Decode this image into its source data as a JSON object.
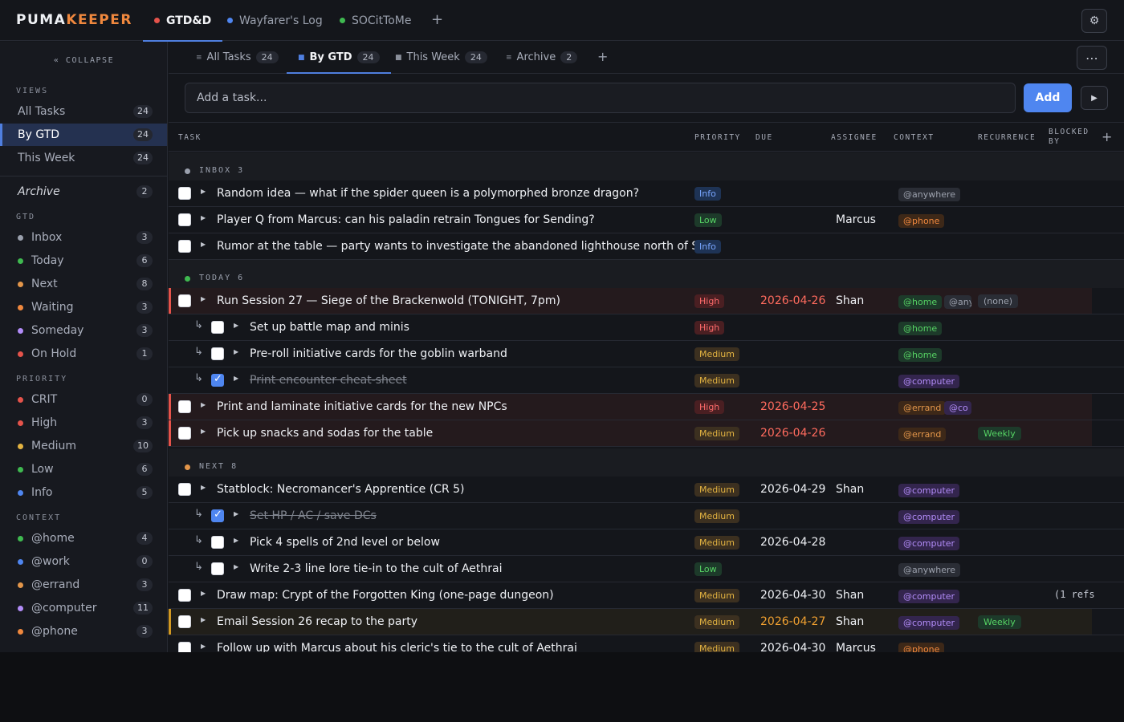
{
  "app": {
    "logo_a": "PUMA",
    "logo_b": "KEEPER"
  },
  "project_tabs": [
    {
      "label": "GTD&D",
      "color": "#e5534b",
      "active": true
    },
    {
      "label": "Wayfarer's Log",
      "color": "#4f86f0"
    },
    {
      "label": "SOCitToMe",
      "color": "#3fb950"
    }
  ],
  "icons": {
    "add_project": "+",
    "settings": "⚙",
    "more": "⋯",
    "add_view": "+",
    "add_column": "+",
    "play": "▶"
  },
  "sidebar": {
    "collapse_label": "« COLLAPSE",
    "views_heading": "VIEWS",
    "views": [
      {
        "label": "All Tasks",
        "count": "24"
      },
      {
        "label": "By GTD",
        "count": "24",
        "active": true
      },
      {
        "label": "This Week",
        "count": "24"
      }
    ],
    "archive": {
      "label": "Archive",
      "count": "2"
    },
    "gtd_heading": "GTD",
    "gtd": [
      {
        "label": "Inbox",
        "count": "3",
        "color": "#9aa0ad"
      },
      {
        "label": "Today",
        "count": "6",
        "color": "#3fb950"
      },
      {
        "label": "Next",
        "count": "8",
        "color": "#e3964a"
      },
      {
        "label": "Waiting",
        "count": "3",
        "color": "#f0883e"
      },
      {
        "label": "Someday",
        "count": "3",
        "color": "#b28cf8"
      },
      {
        "label": "On Hold",
        "count": "1",
        "color": "#e5534b"
      }
    ],
    "priority_heading": "PRIORITY",
    "priority": [
      {
        "label": "CRIT",
        "count": "0",
        "color": "#e5534b"
      },
      {
        "label": "High",
        "count": "3",
        "color": "#e5534b"
      },
      {
        "label": "Medium",
        "count": "10",
        "color": "#e3b341"
      },
      {
        "label": "Low",
        "count": "6",
        "color": "#3fb950"
      },
      {
        "label": "Info",
        "count": "5",
        "color": "#4f86f0"
      }
    ],
    "context_heading": "CONTEXT",
    "context": [
      {
        "label": "@home",
        "count": "4",
        "color": "#3fb950"
      },
      {
        "label": "@work",
        "count": "0",
        "color": "#4f86f0"
      },
      {
        "label": "@errand",
        "count": "3",
        "color": "#e3964a"
      },
      {
        "label": "@computer",
        "count": "11",
        "color": "#b28cf8"
      },
      {
        "label": "@phone",
        "count": "3",
        "color": "#f0883e"
      }
    ]
  },
  "view_tabs": [
    {
      "icon": "≡",
      "label": "All Tasks",
      "count": "24"
    },
    {
      "icon": "■",
      "label": "By GTD",
      "count": "24",
      "active": true
    },
    {
      "icon": "■",
      "label": "This Week",
      "count": "24"
    },
    {
      "icon": "≡",
      "label": "Archive",
      "count": "2"
    }
  ],
  "add_task": {
    "placeholder": "Add a task...",
    "button": "Add"
  },
  "columns": {
    "task": "TASK",
    "priority": "PRIORITY",
    "due": "DUE",
    "assignee": "ASSIGNEE",
    "context": "CONTEXT",
    "recurrence": "RECURRENCE",
    "blocked_by_1": "BLOCKED",
    "blocked_by_2": "BY"
  },
  "groups": {
    "inbox": {
      "label": "INBOX  3",
      "color": "#9aa0ad"
    },
    "today": {
      "label": "TODAY  6",
      "color": "#3fb950"
    },
    "next": {
      "label": "NEXT  8",
      "color": "#e3964a"
    }
  },
  "tasks": [
    {
      "title": "Random idea — what if the spider queen is a polymorphed bronze dragon?",
      "priority": "Info",
      "due": "",
      "assignee": "",
      "contexts": [
        "@anywhere"
      ],
      "recurrence": "",
      "blocked": ""
    },
    {
      "title": "Player Q from Marcus: can his paladin retrain Tongues for Sending?",
      "priority": "Low",
      "due": "",
      "assignee": "Marcus",
      "contexts": [
        "@phone"
      ],
      "recurrence": "",
      "blocked": ""
    },
    {
      "title": "Rumor at the table — party wants to investigate the abandoned lighthouse north of Sal...",
      "priority": "Info",
      "due": "",
      "assignee": "",
      "contexts": [],
      "recurrence": "",
      "blocked": ""
    },
    {
      "title": "Run Session 27 — Siege of the Brackenwold (TONIGHT, 7pm)",
      "priority": "High",
      "due": "2026-04-26",
      "assignee": "Shan",
      "contexts": [
        "@home",
        "@any"
      ],
      "recurrence": "(none)",
      "blocked": ""
    },
    {
      "title": "Set up battle map and minis",
      "priority": "High",
      "due": "",
      "assignee": "",
      "contexts": [
        "@home"
      ],
      "recurrence": "",
      "blocked": ""
    },
    {
      "title": "Pre-roll initiative cards for the goblin warband",
      "priority": "Medium",
      "due": "",
      "assignee": "",
      "contexts": [
        "@home"
      ],
      "recurrence": "",
      "blocked": ""
    },
    {
      "title": "Print encounter cheat-sheet",
      "priority": "Medium",
      "due": "",
      "assignee": "",
      "contexts": [
        "@computer"
      ],
      "recurrence": "",
      "blocked": ""
    },
    {
      "title": "Print and laminate initiative cards for the new NPCs",
      "priority": "High",
      "due": "2026-04-25",
      "assignee": "",
      "contexts": [
        "@errand",
        "@co"
      ],
      "recurrence": "",
      "blocked": ""
    },
    {
      "title": "Pick up snacks and sodas for the table",
      "priority": "Medium",
      "due": "2026-04-26",
      "assignee": "",
      "contexts": [
        "@errand"
      ],
      "recurrence": "Weekly",
      "blocked": ""
    },
    {
      "title": "Statblock: Necromancer's Apprentice (CR 5)",
      "priority": "Medium",
      "due": "2026-04-29",
      "assignee": "Shan",
      "contexts": [
        "@computer"
      ],
      "recurrence": "",
      "blocked": ""
    },
    {
      "title": "Set HP / AC / save DCs",
      "priority": "Medium",
      "due": "",
      "assignee": "",
      "contexts": [
        "@computer"
      ],
      "recurrence": "",
      "blocked": ""
    },
    {
      "title": "Pick 4 spells of 2nd level or below",
      "priority": "Medium",
      "due": "2026-04-28",
      "assignee": "",
      "contexts": [
        "@computer"
      ],
      "recurrence": "",
      "blocked": ""
    },
    {
      "title": "Write 2-3 line lore tie-in to the cult of Aethrai",
      "priority": "Low",
      "due": "",
      "assignee": "",
      "contexts": [
        "@anywhere"
      ],
      "recurrence": "",
      "blocked": ""
    },
    {
      "title": "Draw map: Crypt of the Forgotten King (one-page dungeon)",
      "priority": "Medium",
      "due": "2026-04-30",
      "assignee": "Shan",
      "contexts": [
        "@computer"
      ],
      "recurrence": "",
      "blocked": "(1 refs"
    },
    {
      "title": "Email Session 26 recap to the party",
      "priority": "Medium",
      "due": "2026-04-27",
      "assignee": "Shan",
      "contexts": [
        "@computer"
      ],
      "recurrence": "Weekly",
      "blocked": ""
    },
    {
      "title": "Follow up with Marcus about his cleric's tie to the cult of Aethrai",
      "priority": "Medium",
      "due": "2026-04-30",
      "assignee": "Marcus",
      "contexts": [
        "@phone"
      ],
      "recurrence": "",
      "blocked": ""
    }
  ]
}
